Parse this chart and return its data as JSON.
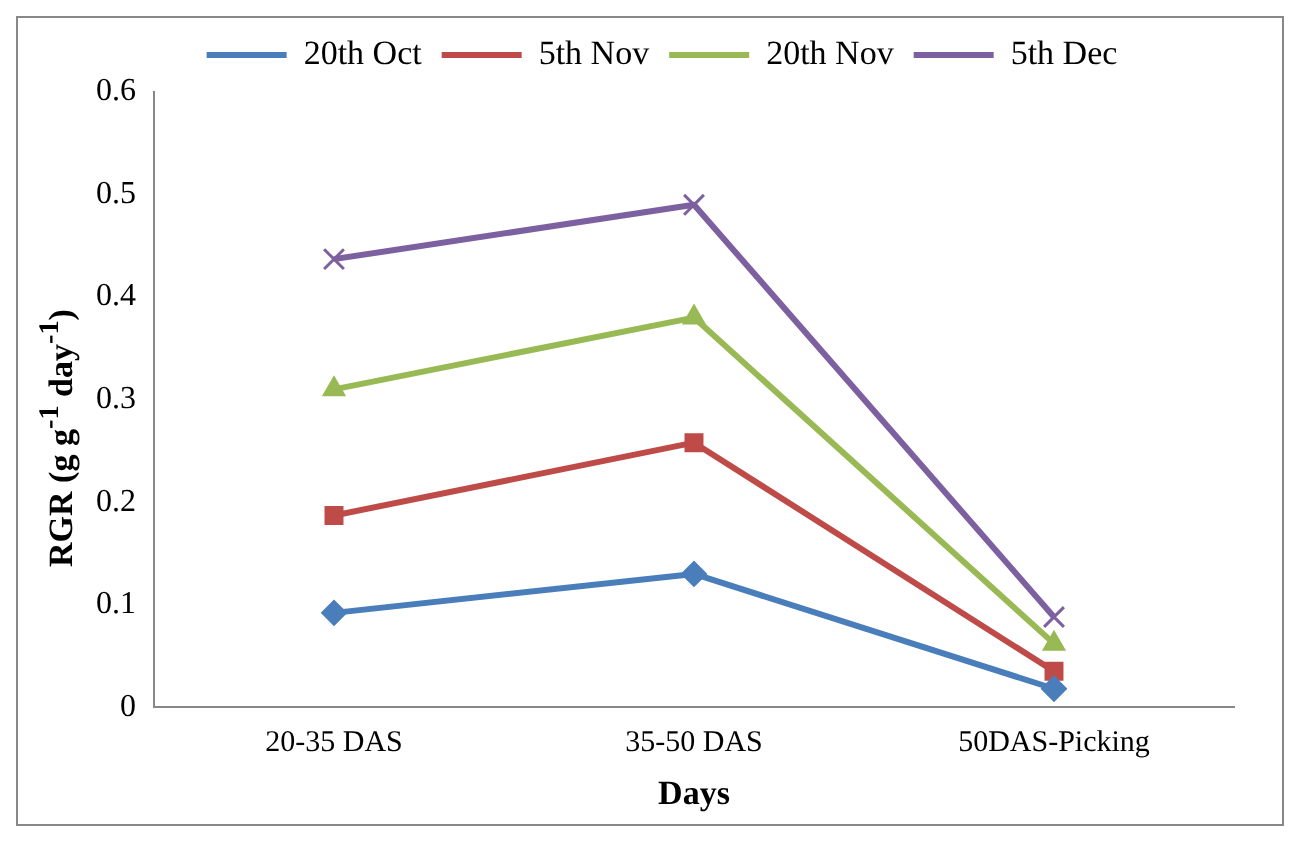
{
  "chart_data": {
    "type": "line",
    "xlabel": "Days",
    "ylabel": "RGR (g g$^{-1}$ day$^{-1}$)",
    "categories": [
      "20-35 DAS",
      "35-50 DAS",
      "50DAS-Picking"
    ],
    "series": [
      {
        "name": "20th Oct",
        "color": "#4a7ebb",
        "marker": "diamond",
        "values": [
          0.092,
          0.13,
          0.018
        ]
      },
      {
        "name": "5th Nov",
        "color": "#be4b48",
        "marker": "square",
        "values": [
          0.187,
          0.258,
          0.035
        ]
      },
      {
        "name": "20th Nov",
        "color": "#98b954",
        "marker": "triangle",
        "values": [
          0.31,
          0.38,
          0.062
        ]
      },
      {
        "name": "5th Dec",
        "color": "#7d60a0",
        "marker": "cross",
        "values": [
          0.437,
          0.49,
          0.088
        ]
      }
    ],
    "ylim": [
      0,
      0.6
    ],
    "yticks": [
      0,
      0.1,
      0.2,
      0.3,
      0.4,
      0.5,
      0.6
    ],
    "grid": false,
    "legend": "top",
    "line_style": "solid"
  }
}
